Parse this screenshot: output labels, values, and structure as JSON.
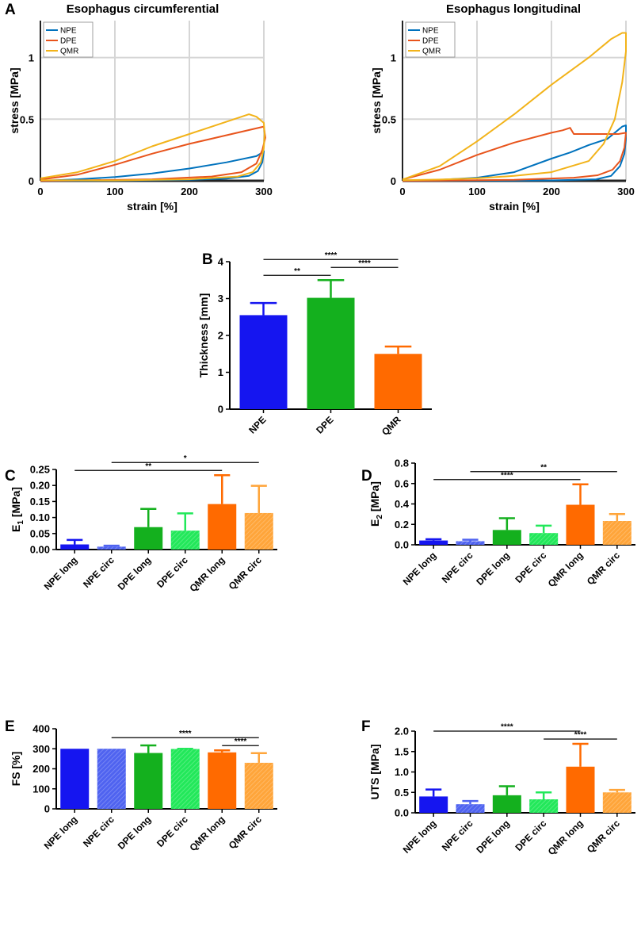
{
  "colors": {
    "npe": "#0072bd",
    "dpe": "#e8541c",
    "qmr": "#f2b31a",
    "bar_npe": "#1515f0",
    "bar_npe_light": "#4f63f0",
    "bar_dpe": "#14b01e",
    "bar_dpe_light": "#22e85a",
    "bar_qmr": "#ff6a00",
    "bar_qmr_light": "#ffa53a"
  },
  "chart_data": [
    {
      "id": "A1",
      "panel_label": "A",
      "type": "line",
      "title": "Esophagus circumferential",
      "xlabel": "strain [%]",
      "ylabel": "stress [MPa]",
      "xlim": [
        0,
        300
      ],
      "ylim": [
        0,
        1.3
      ],
      "xticks": [
        "0",
        "100",
        "200",
        "300"
      ],
      "yticks": [
        "0",
        "0.5",
        "1"
      ],
      "grid": true,
      "legend": "top-left",
      "series": [
        {
          "name": "NPE",
          "color_key": "npe",
          "points": [
            [
              0,
              0
            ],
            [
              50,
              0.012
            ],
            [
              100,
              0.03
            ],
            [
              150,
              0.06
            ],
            [
              200,
              0.1
            ],
            [
              250,
              0.15
            ],
            [
              290,
              0.2
            ],
            [
              298,
              0.23
            ],
            [
              300,
              0.24
            ],
            [
              298,
              0.15
            ],
            [
              292,
              0.08
            ],
            [
              280,
              0.04
            ],
            [
              250,
              0.018
            ],
            [
              200,
              0.008
            ],
            [
              100,
              0.002
            ],
            [
              0,
              0
            ]
          ]
        },
        {
          "name": "DPE",
          "color_key": "dpe",
          "points": [
            [
              0,
              0.01
            ],
            [
              50,
              0.05
            ],
            [
              100,
              0.13
            ],
            [
              150,
              0.22
            ],
            [
              200,
              0.3
            ],
            [
              250,
              0.37
            ],
            [
              300,
              0.44
            ],
            [
              302,
              0.35
            ],
            [
              298,
              0.25
            ],
            [
              290,
              0.14
            ],
            [
              270,
              0.07
            ],
            [
              230,
              0.035
            ],
            [
              150,
              0.012
            ],
            [
              50,
              0.003
            ],
            [
              0,
              0
            ]
          ]
        },
        {
          "name": "QMR",
          "color_key": "qmr",
          "points": [
            [
              0,
              0.02
            ],
            [
              50,
              0.07
            ],
            [
              100,
              0.16
            ],
            [
              150,
              0.28
            ],
            [
              200,
              0.38
            ],
            [
              250,
              0.48
            ],
            [
              280,
              0.54
            ],
            [
              290,
              0.52
            ],
            [
              300,
              0.47
            ],
            [
              301,
              0.38
            ],
            [
              300,
              0.27
            ],
            [
              296,
              0.15
            ],
            [
              285,
              0.07
            ],
            [
              265,
              0.035
            ],
            [
              200,
              0.012
            ],
            [
              100,
              0.003
            ],
            [
              0,
              0.005
            ]
          ]
        }
      ]
    },
    {
      "id": "A2",
      "type": "line",
      "title": "Esophagus longitudinal",
      "xlabel": "strain [%]",
      "ylabel": "stress [MPa]",
      "xlim": [
        0,
        300
      ],
      "ylim": [
        0,
        1.3
      ],
      "xticks": [
        "0",
        "100",
        "200",
        "300"
      ],
      "yticks": [
        "0",
        "0.5",
        "1"
      ],
      "grid": true,
      "legend": "top-left",
      "series": [
        {
          "name": "NPE",
          "color_key": "npe",
          "points": [
            [
              0,
              0
            ],
            [
              50,
              0.008
            ],
            [
              100,
              0.025
            ],
            [
              150,
              0.07
            ],
            [
              200,
              0.18
            ],
            [
              225,
              0.23
            ],
            [
              250,
              0.29
            ],
            [
              275,
              0.34
            ],
            [
              295,
              0.44
            ],
            [
              300,
              0.45
            ],
            [
              300,
              0.34
            ],
            [
              298,
              0.22
            ],
            [
              292,
              0.12
            ],
            [
              280,
              0.04
            ],
            [
              260,
              0.012
            ],
            [
              200,
              0.003
            ],
            [
              100,
              0.001
            ],
            [
              0,
              0
            ]
          ]
        },
        {
          "name": "DPE",
          "color_key": "dpe",
          "points": [
            [
              0,
              0.01
            ],
            [
              50,
              0.09
            ],
            [
              100,
              0.21
            ],
            [
              150,
              0.31
            ],
            [
              200,
              0.39
            ],
            [
              215,
              0.41
            ],
            [
              225,
              0.43
            ],
            [
              230,
              0.38
            ],
            [
              260,
              0.38
            ],
            [
              290,
              0.38
            ],
            [
              300,
              0.39
            ],
            [
              298,
              0.27
            ],
            [
              292,
              0.16
            ],
            [
              282,
              0.09
            ],
            [
              262,
              0.045
            ],
            [
              230,
              0.025
            ],
            [
              150,
              0.008
            ],
            [
              50,
              0.002
            ],
            [
              0,
              0
            ]
          ]
        },
        {
          "name": "QMR",
          "color_key": "qmr",
          "points": [
            [
              0,
              0.01
            ],
            [
              50,
              0.12
            ],
            [
              100,
              0.32
            ],
            [
              150,
              0.54
            ],
            [
              200,
              0.78
            ],
            [
              250,
              1.0
            ],
            [
              280,
              1.15
            ],
            [
              295,
              1.2
            ],
            [
              300,
              1.2
            ],
            [
              300,
              1.05
            ],
            [
              295,
              0.8
            ],
            [
              285,
              0.5
            ],
            [
              270,
              0.3
            ],
            [
              250,
              0.16
            ],
            [
              200,
              0.07
            ],
            [
              150,
              0.04
            ],
            [
              100,
              0.02
            ],
            [
              50,
              0.01
            ],
            [
              0,
              0.005
            ]
          ]
        }
      ]
    },
    {
      "id": "B",
      "panel_label": "B",
      "type": "bar",
      "xlabel": "",
      "ylabel": "Thickness [mm]",
      "ylim": [
        0,
        4
      ],
      "yticks": [
        "0",
        "1",
        "2",
        "3",
        "4"
      ],
      "categories": [
        "NPE",
        "DPE",
        "QMR"
      ],
      "values": [
        2.55,
        3.02,
        1.5
      ],
      "errors": [
        0.33,
        0.48,
        0.2
      ],
      "color_keys": [
        "bar_npe",
        "bar_dpe",
        "bar_qmr"
      ],
      "patterned": [
        false,
        false,
        false
      ],
      "significance": [
        {
          "from": 0,
          "to": 1,
          "label": "**"
        },
        {
          "from": 0,
          "to": 2,
          "label": "****"
        },
        {
          "from": 1,
          "to": 2,
          "label": "****"
        }
      ]
    },
    {
      "id": "C",
      "panel_label": "C",
      "type": "bar",
      "xlabel": "",
      "ylabel": "E",
      "ylabel_sub": "1",
      "ylabel_unit": "[MPa]",
      "ylim": [
        0,
        0.25
      ],
      "yticks": [
        "0.00",
        "0.05",
        "0.10",
        "0.15",
        "0.20",
        "0.25"
      ],
      "categories": [
        "NPE long",
        "NPE circ",
        "DPE long",
        "DPE circ",
        "QMR long",
        "QMR circ"
      ],
      "values": [
        0.016,
        0.009,
        0.07,
        0.059,
        0.142,
        0.114
      ],
      "errors": [
        0.014,
        0.003,
        0.057,
        0.054,
        0.09,
        0.085
      ],
      "color_keys": [
        "bar_npe",
        "bar_npe_light",
        "bar_dpe",
        "bar_dpe_light",
        "bar_qmr",
        "bar_qmr_light"
      ],
      "patterned": [
        false,
        true,
        false,
        true,
        false,
        true
      ],
      "significance": [
        {
          "from": 0,
          "to": 4,
          "label": "**"
        },
        {
          "from": 1,
          "to": 5,
          "label": "*"
        }
      ]
    },
    {
      "id": "D",
      "panel_label": "D",
      "type": "bar",
      "xlabel": "",
      "ylabel": "E",
      "ylabel_sub": "2",
      "ylabel_unit": "[MPa]",
      "ylim": [
        0,
        0.8
      ],
      "yticks": [
        "0.0",
        "0.2",
        "0.4",
        "0.6",
        "0.8"
      ],
      "categories": [
        "NPE long",
        "NPE circ",
        "DPE long",
        "DPE circ",
        "QMR long",
        "QMR circ"
      ],
      "values": [
        0.042,
        0.035,
        0.145,
        0.115,
        0.392,
        0.233
      ],
      "errors": [
        0.012,
        0.015,
        0.115,
        0.072,
        0.2,
        0.068
      ],
      "color_keys": [
        "bar_npe",
        "bar_npe_light",
        "bar_dpe",
        "bar_dpe_light",
        "bar_qmr",
        "bar_qmr_light"
      ],
      "patterned": [
        false,
        true,
        false,
        true,
        false,
        true
      ],
      "significance": [
        {
          "from": 0,
          "to": 4,
          "label": "****"
        },
        {
          "from": 1,
          "to": 5,
          "label": "**"
        }
      ]
    },
    {
      "id": "E",
      "panel_label": "E",
      "type": "bar",
      "xlabel": "",
      "ylabel": "FS [%]",
      "ylim": [
        0,
        400
      ],
      "yticks": [
        "0",
        "100",
        "200",
        "300",
        "400"
      ],
      "categories": [
        "NPE long",
        "NPE circ",
        "DPE long",
        "DPE circ",
        "QMR long",
        "QMR circ"
      ],
      "values": [
        300,
        300,
        279,
        299,
        282,
        230
      ],
      "errors": [
        0,
        0,
        38,
        1,
        10,
        48
      ],
      "color_keys": [
        "bar_npe",
        "bar_npe_light",
        "bar_dpe",
        "bar_dpe_light",
        "bar_qmr",
        "bar_qmr_light"
      ],
      "patterned": [
        false,
        true,
        false,
        true,
        false,
        true
      ],
      "significance": [
        {
          "from": 1,
          "to": 5,
          "label": "****"
        },
        {
          "from": 4,
          "to": 5,
          "label": "****"
        }
      ]
    },
    {
      "id": "F",
      "panel_label": "F",
      "type": "bar",
      "xlabel": "",
      "ylabel": "UTS [MPa]",
      "ylim": [
        0,
        2.0
      ],
      "yticks": [
        "0.0",
        "0.5",
        "1.0",
        "1.5",
        "2.0"
      ],
      "categories": [
        "NPE long",
        "NPE circ",
        "DPE long",
        "DPE circ",
        "QMR long",
        "QMR circ"
      ],
      "values": [
        0.4,
        0.21,
        0.43,
        0.33,
        1.13,
        0.5
      ],
      "errors": [
        0.17,
        0.08,
        0.22,
        0.17,
        0.56,
        0.06
      ],
      "color_keys": [
        "bar_npe",
        "bar_npe_light",
        "bar_dpe",
        "bar_dpe_light",
        "bar_qmr",
        "bar_qmr_light"
      ],
      "patterned": [
        false,
        true,
        false,
        true,
        false,
        true
      ],
      "significance": [
        {
          "from": 0,
          "to": 4,
          "label": "****"
        },
        {
          "from": 3,
          "to": 5,
          "label": "****"
        }
      ]
    }
  ]
}
